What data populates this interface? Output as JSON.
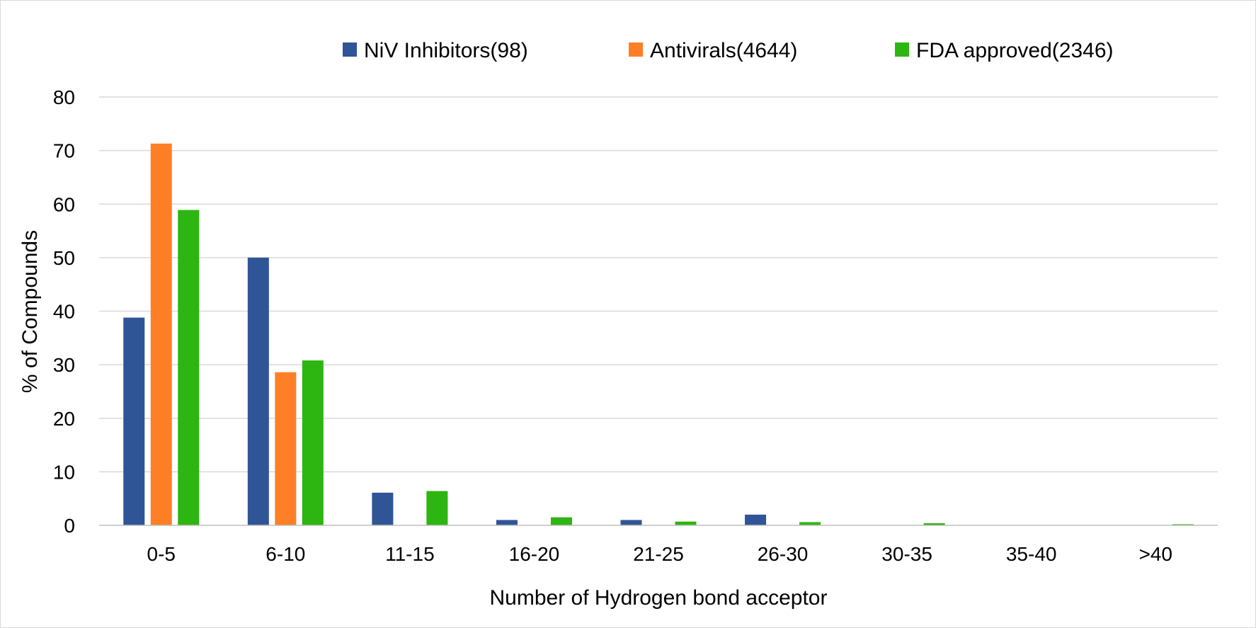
{
  "chart_data": {
    "type": "bar",
    "title": "",
    "xlabel": "Number of Hydrogen bond acceptor",
    "ylabel": "% of Compounds",
    "ylim": [
      0,
      80
    ],
    "yticks": [
      0,
      10,
      20,
      30,
      40,
      50,
      60,
      70,
      80
    ],
    "grid": true,
    "legend_position": "top",
    "categories": [
      "0-5",
      "6-10",
      "11-15",
      "16-20",
      "21-25",
      "26-30",
      "30-35",
      "35-40",
      ">40"
    ],
    "series": [
      {
        "name": "NiV Inhibitors(98)",
        "color": "#2f5597",
        "values": [
          38.8,
          50.0,
          6.1,
          1.0,
          1.0,
          2.0,
          0,
          0,
          0
        ]
      },
      {
        "name": "Antivirals(4644)",
        "color": "#ff7f27",
        "values": [
          71.3,
          28.6,
          0,
          0,
          0,
          0,
          0,
          0,
          0
        ]
      },
      {
        "name": "FDA approved(2346)",
        "color": "#2db511",
        "values": [
          58.9,
          30.8,
          6.4,
          1.5,
          0.7,
          0.6,
          0.4,
          0,
          0.2
        ]
      }
    ]
  }
}
